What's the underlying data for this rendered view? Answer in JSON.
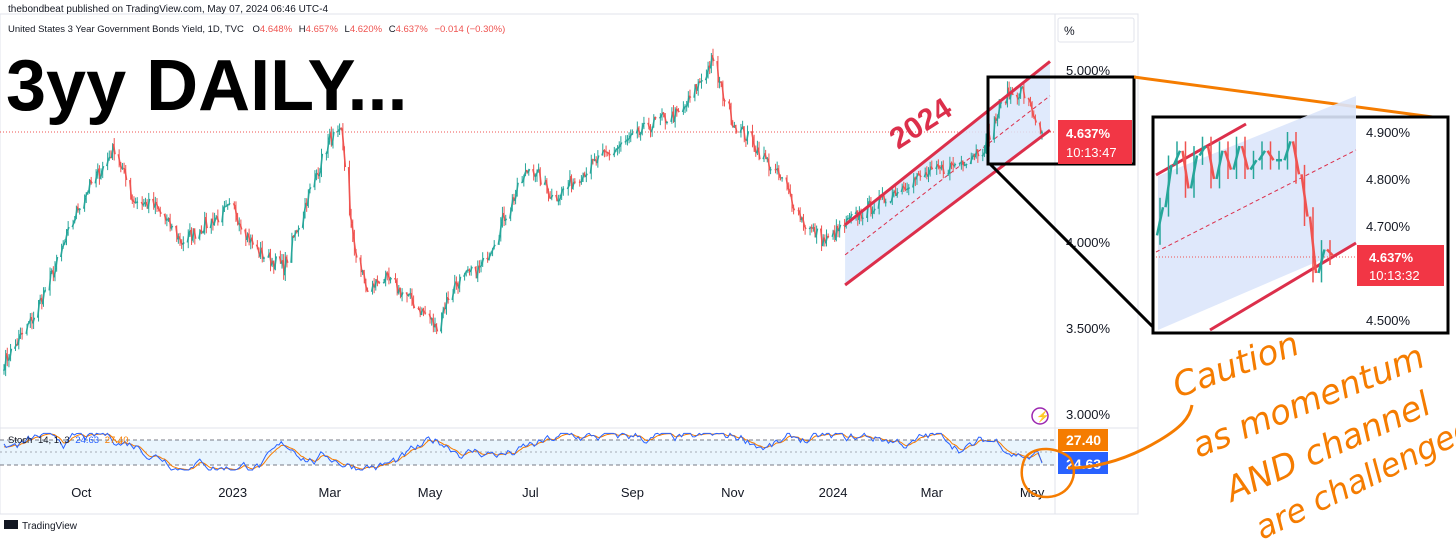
{
  "header": {
    "published": "thebondbeat published on TradingView.com, May 07, 2024 06:46 UTC-4",
    "symbol": "United States 3 Year Government Bonds Yield, 1D, TVC",
    "o_label": "O",
    "o_value": "4.648%",
    "h_label": "H",
    "h_value": "4.657%",
    "l_label": "L",
    "l_value": "4.620%",
    "c_label": "C",
    "c_value": "4.637%",
    "change": "−0.014 (−0.30%)"
  },
  "overlay_title": "3yy DAILY...",
  "channel_label": "2024",
  "scale_unit": "%",
  "price_axis_labels": [
    "5.000%",
    "4.000%",
    "3.500%",
    "3.000%"
  ],
  "time_axis_labels": [
    "Oct",
    "2023",
    "Mar",
    "May",
    "Jul",
    "Sep",
    "Nov",
    "2024",
    "Mar",
    "May"
  ],
  "last_price": {
    "value": "4.637%",
    "countdown": "10:13:47"
  },
  "inset": {
    "axis_labels": [
      "4.900%",
      "4.800%",
      "4.700%",
      "4.500%"
    ],
    "last_price": {
      "value": "4.637%",
      "countdown": "10:13:32"
    }
  },
  "stoch": {
    "legend": "Stoch",
    "params": "14, 1, 3",
    "k_value": "24.63",
    "d_value": "27.40"
  },
  "annotation": [
    "Caution",
    "as momentum",
    "AND channel",
    "are challenged"
  ],
  "footer": {
    "brand": "TradingView"
  },
  "colors": {
    "up": "#26a69a",
    "down": "#ef5350",
    "channel": "#dc2f4b",
    "fill": "#dbe6fb",
    "orange": "#f57c00",
    "d_line": "#f57c00",
    "k_line": "#2962ff"
  },
  "chart_data": {
    "type": "candlestick",
    "title": "3yy DAILY...",
    "ylabel": "%",
    "y_axis_ticks": [
      3.0,
      3.5,
      4.0,
      5.0
    ],
    "ylim": [
      3.0,
      5.1
    ],
    "x_range": [
      "2022-08-15",
      "2024-05-07"
    ],
    "last_close": 4.637,
    "series": [
      {
        "name": "United States 3 Year Government Bonds Yield",
        "x": [
          "2022-08-15",
          "2022-09-01",
          "2022-09-15",
          "2022-10-01",
          "2022-10-15",
          "2022-10-21",
          "2022-11-01",
          "2022-11-15",
          "2022-12-01",
          "2022-12-15",
          "2023-01-01",
          "2023-01-15",
          "2023-02-01",
          "2023-02-15",
          "2023-03-01",
          "2023-03-08",
          "2023-03-15",
          "2023-03-24",
          "2023-04-01",
          "2023-04-15",
          "2023-05-01",
          "2023-05-04",
          "2023-05-15",
          "2023-06-01",
          "2023-06-15",
          "2023-07-01",
          "2023-07-15",
          "2023-08-01",
          "2023-08-15",
          "2023-09-01",
          "2023-09-15",
          "2023-10-01",
          "2023-10-19",
          "2023-11-01",
          "2023-11-15",
          "2023-12-01",
          "2023-12-15",
          "2023-12-27",
          "2024-01-15",
          "2024-02-01",
          "2024-02-15",
          "2024-03-01",
          "2024-03-15",
          "2024-04-01",
          "2024-04-15",
          "2024-04-25",
          "2024-05-01",
          "2024-05-07"
        ],
        "y": [
          3.3,
          3.55,
          3.85,
          4.25,
          4.45,
          4.55,
          4.25,
          4.2,
          4.0,
          4.1,
          4.2,
          3.95,
          3.85,
          4.25,
          4.6,
          4.62,
          4.0,
          3.7,
          3.8,
          3.7,
          3.55,
          3.5,
          3.75,
          3.85,
          4.15,
          4.45,
          4.25,
          4.4,
          4.5,
          4.6,
          4.7,
          4.75,
          5.05,
          4.7,
          4.55,
          4.35,
          4.1,
          4.0,
          4.15,
          4.25,
          4.35,
          4.4,
          4.45,
          4.55,
          4.85,
          4.88,
          4.75,
          4.637
        ]
      }
    ],
    "channel": {
      "label": "2024",
      "upper": [
        [
          "2024-01-01",
          4.1
        ],
        [
          "2024-05-07",
          5.05
        ]
      ],
      "lower": [
        [
          "2024-01-01",
          3.75
        ],
        [
          "2024-05-07",
          4.65
        ]
      ]
    },
    "inset_zoom": {
      "y_axis_ticks": [
        4.5,
        4.7,
        4.8,
        4.9
      ],
      "x": [
        "2024-04-08",
        "2024-04-10",
        "2024-04-11",
        "2024-04-12",
        "2024-04-15",
        "2024-04-16",
        "2024-04-17",
        "2024-04-18",
        "2024-04-19",
        "2024-04-22",
        "2024-04-23",
        "2024-04-24",
        "2024-04-25",
        "2024-04-26",
        "2024-04-29",
        "2024-04-30",
        "2024-05-01",
        "2024-05-02",
        "2024-05-03",
        "2024-05-06",
        "2024-05-07"
      ],
      "close": [
        4.74,
        4.83,
        4.86,
        4.78,
        4.85,
        4.87,
        4.8,
        4.86,
        4.82,
        4.87,
        4.82,
        4.84,
        4.86,
        4.84,
        4.84,
        4.88,
        4.81,
        4.72,
        4.6,
        4.65,
        4.637
      ]
    },
    "stochastic": {
      "name": "Stoch (14, 1, 3)",
      "k_last": 24.63,
      "d_last": 27.4,
      "bands": [
        20,
        80
      ]
    }
  }
}
